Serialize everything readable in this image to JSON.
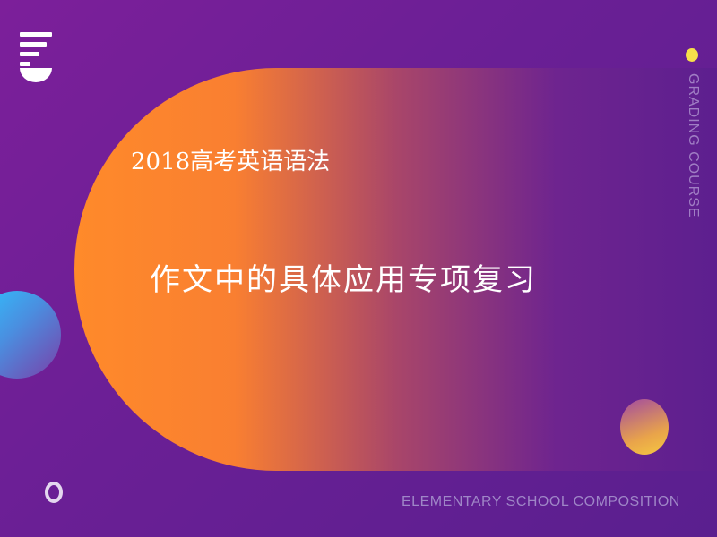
{
  "slide": {
    "subtitle": "2018高考英语语法",
    "main_title": "作文中的具体应用专项复习",
    "side_text": "GRADING COURSE",
    "footer_text": "ELEMENTARY SCHOOL COMPOSITION"
  },
  "decorations": {
    "logo_icon": "stacked-lines-logo-icon",
    "colors": {
      "background": "#6a1f95",
      "capsule_start": "#ff8a2a",
      "capsule_end": "#5d1f8f",
      "accent_yellow": "#f7e04a",
      "accent_blue": "#2ec3ff",
      "text_light": "#ffffff",
      "text_muted": "#a07ec4"
    }
  }
}
